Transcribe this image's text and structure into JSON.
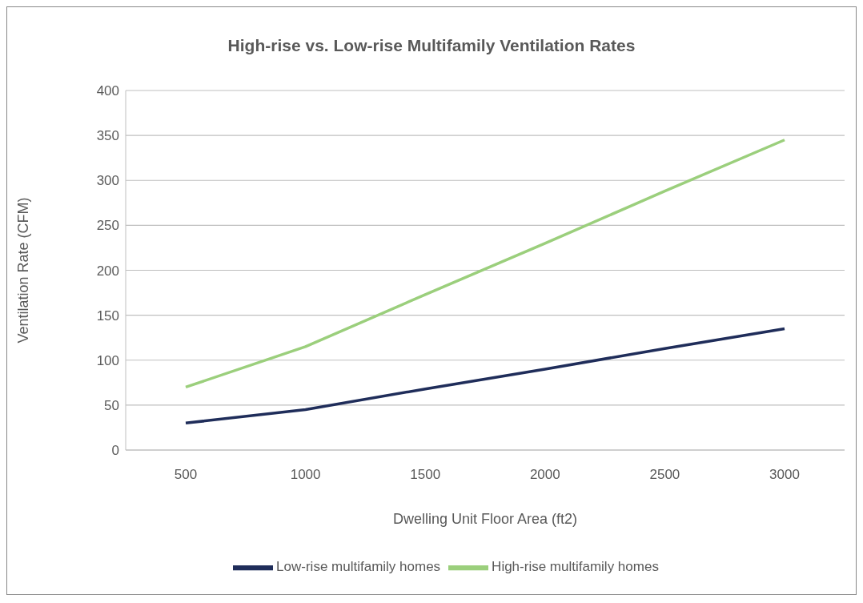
{
  "chart_data": {
    "type": "line",
    "title": "High-rise vs. Low-rise Multifamily Ventilation Rates",
    "xlabel": "Dwelling Unit Floor Area (ft2)",
    "ylabel": "Ventilation Rate (CFM)",
    "categories": [
      "500",
      "1000",
      "1500",
      "2000",
      "2500",
      "3000"
    ],
    "series": [
      {
        "name": "Low-rise multifamily homes",
        "color": "#1f2d5a",
        "values": [
          30,
          45,
          68,
          90,
          113,
          135
        ]
      },
      {
        "name": "High-rise multifamily homes",
        "color": "#9bcf7c",
        "values": [
          70,
          115,
          173,
          230,
          288,
          345
        ]
      }
    ],
    "ylim": [
      0,
      400
    ],
    "yticks": [
      0,
      50,
      100,
      150,
      200,
      250,
      300,
      350,
      400
    ],
    "grid": "y",
    "legend": "bottom",
    "marker": "none",
    "line_style": "solid"
  }
}
